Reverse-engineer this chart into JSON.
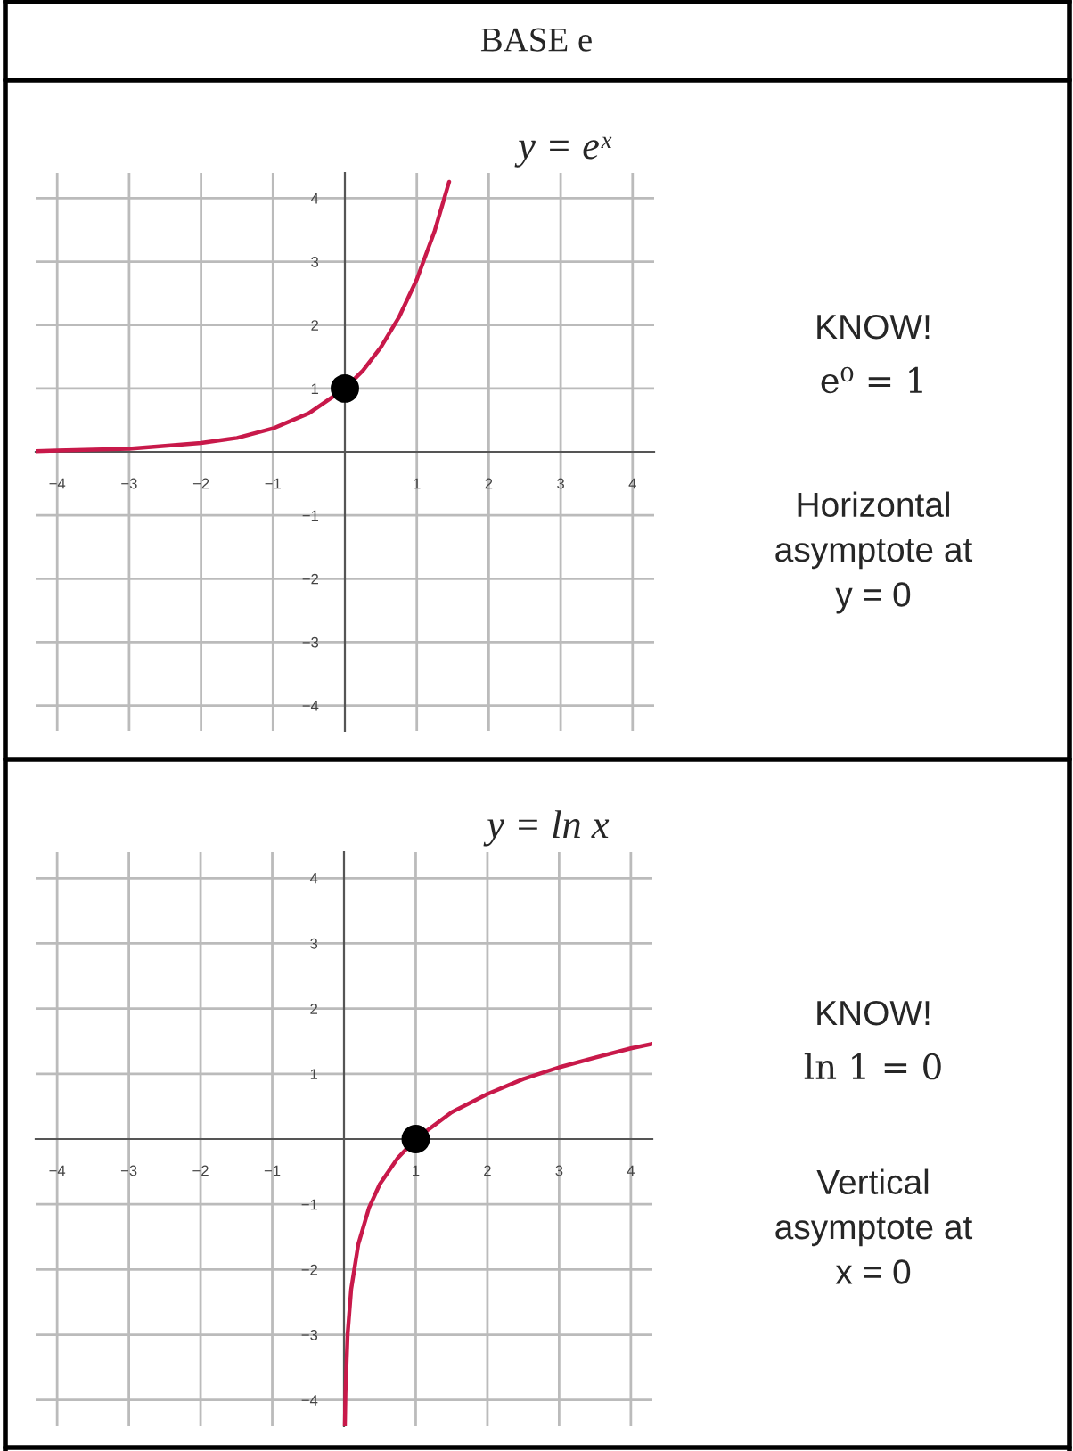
{
  "chart_data": [
    {
      "type": "line",
      "title": "BASE e",
      "subtitle": "y = eˣ",
      "annotations": [
        "KNOW!",
        "e⁰ = 1",
        "Horizontal\nasymptote at\ny = 0"
      ],
      "series": [
        {
          "color": "#c8194a",
          "x": [
            -4.3,
            -4,
            -3,
            -2,
            -1.5,
            -1,
            -0.5,
            0,
            0.25,
            0.5,
            0.75,
            1,
            1.25,
            1.45
          ],
          "values": [
            0.01,
            0.02,
            0.05,
            0.14,
            0.22,
            0.37,
            0.61,
            1,
            1.28,
            1.65,
            2.12,
            2.72,
            3.49,
            4.26
          ]
        },
        {
          "type": "scatter",
          "color": "#000000",
          "marker": "circle",
          "x": [
            0
          ],
          "values": [
            1
          ]
        }
      ],
      "xlim": [
        -4.3,
        4.3
      ],
      "ylim": [
        -4.4,
        4.4
      ],
      "xticks": [
        {
          "value": -4,
          "label": "−4"
        },
        {
          "value": -3,
          "label": "−3"
        },
        {
          "value": -2,
          "label": "−2"
        },
        {
          "value": -1,
          "label": "−1"
        },
        1,
        2,
        3,
        4
      ],
      "yticks": [
        {
          "value": -4,
          "label": "−4"
        },
        {
          "value": -3,
          "label": "−3"
        },
        {
          "value": -2,
          "label": "−2"
        },
        {
          "value": -1,
          "label": "−1"
        },
        1,
        2,
        3,
        4
      ],
      "grid": true
    },
    {
      "type": "line",
      "subtitle": "y = ln x",
      "annotations": [
        "KNOW!",
        "ln 1 = 0",
        "Vertical\nasymptote at\nx = 0"
      ],
      "series": [
        {
          "color": "#c8194a",
          "x": [
            0.012,
            0.02,
            0.05,
            0.1,
            0.2,
            0.35,
            0.5,
            0.75,
            1,
            1.5,
            2,
            2.5,
            3,
            3.5,
            4,
            4.3
          ],
          "values": [
            -4.4,
            -3.9,
            -3.0,
            -2.3,
            -1.61,
            -1.05,
            -0.69,
            -0.29,
            0,
            0.41,
            0.69,
            0.92,
            1.1,
            1.25,
            1.39,
            1.46
          ]
        },
        {
          "type": "scatter",
          "color": "#000000",
          "marker": "circle",
          "x": [
            1
          ],
          "values": [
            0
          ]
        }
      ],
      "xlim": [
        -4.3,
        4.3
      ],
      "ylim": [
        -4.4,
        4.4
      ],
      "xticks": [
        {
          "value": -4,
          "label": "−4"
        },
        {
          "value": -3,
          "label": "−3"
        },
        {
          "value": -2,
          "label": "−2"
        },
        {
          "value": -1,
          "label": "−1"
        },
        1,
        2,
        3,
        4
      ],
      "yticks": [
        {
          "value": -4,
          "label": "−4"
        },
        {
          "value": -3,
          "label": "−3"
        },
        {
          "value": -2,
          "label": "−2"
        },
        {
          "value": -1,
          "label": "−1"
        },
        1,
        2,
        3,
        4
      ],
      "grid": true
    }
  ]
}
